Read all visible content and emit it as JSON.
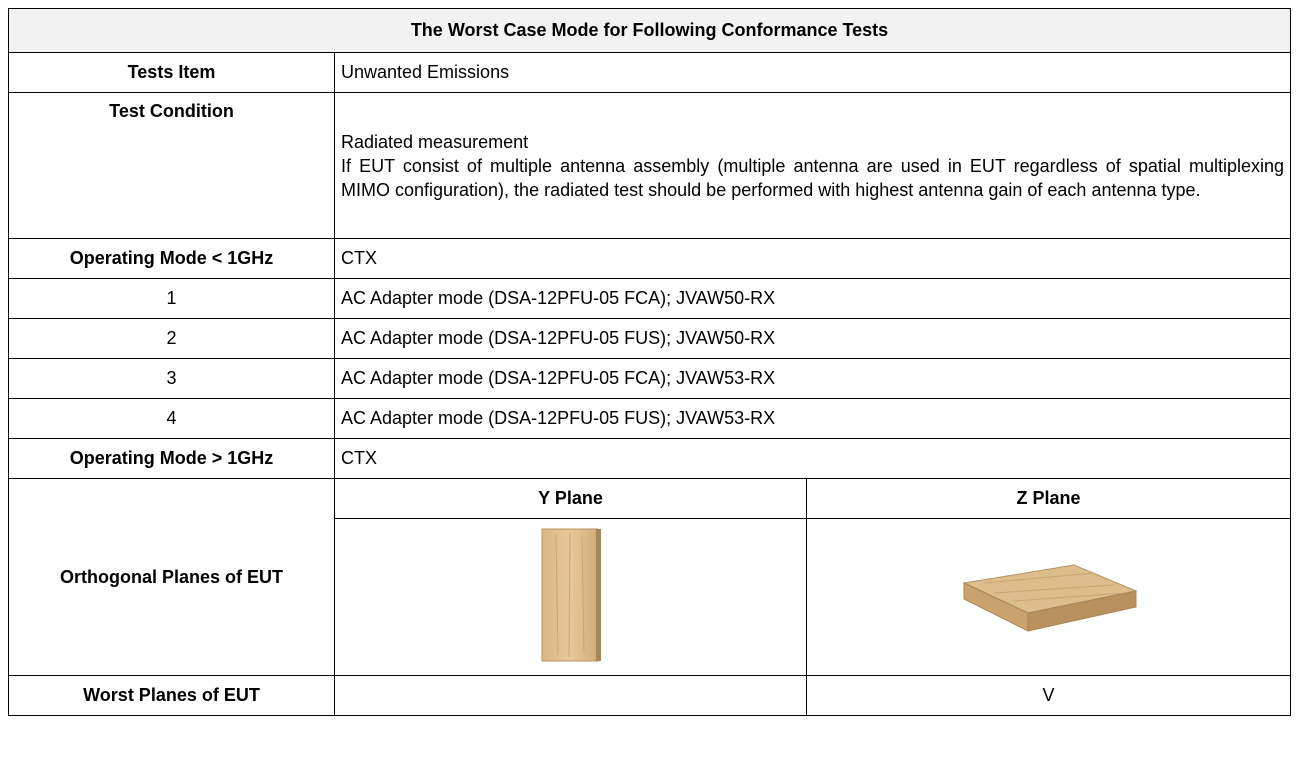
{
  "table": {
    "title": "The Worst Case Mode for Following Conformance Tests",
    "rows": [
      {
        "label": "Tests Item",
        "value": "Unwanted Emissions"
      },
      {
        "label": "Test Condition",
        "value": [
          "Radiated measurement",
          "If EUT consist of multiple antenna assembly (multiple antenna are used in EUT regardless of spatial multiplexing MIMO configuration), the radiated test should be performed with highest antenna gain of each antenna type."
        ]
      },
      {
        "label": "Operating Mode < 1GHz",
        "value": "CTX"
      },
      {
        "label": "1",
        "value": "AC Adapter mode (DSA-12PFU-05 FCA); JVAW50-RX"
      },
      {
        "label": "2",
        "value": "AC Adapter mode (DSA-12PFU-05 FUS); JVAW50-RX"
      },
      {
        "label": "3",
        "value": "AC Adapter mode (DSA-12PFU-05 FCA); JVAW53-RX"
      },
      {
        "label": "4",
        "value": "AC Adapter mode (DSA-12PFU-05 FUS); JVAW53-RX"
      },
      {
        "label": "Operating Mode > 1GHz",
        "value": "CTX"
      }
    ],
    "planes": {
      "label": "Orthogonal Planes of EUT",
      "columns": [
        "Y Plane",
        "Z Plane"
      ]
    },
    "worst": {
      "label": "Worst Planes of EUT",
      "values": [
        null,
        "V"
      ]
    }
  }
}
